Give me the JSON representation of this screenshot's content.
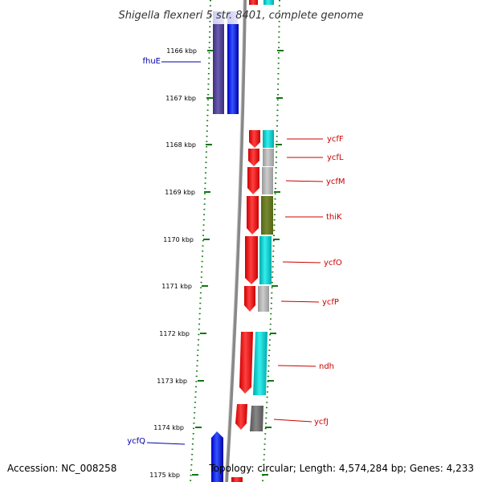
{
  "title": "Shigella flexneri 5 str. 8401, complete genome",
  "footer": {
    "accession": "Accession: NC_008258",
    "summary": "Topology: circular; Length: 4,574,284 bp; Genes: 4,233"
  },
  "scale_labels": [
    "1166 kbp",
    "1167 kbp",
    "1168 kbp",
    "1169 kbp",
    "1170 kbp",
    "1171 kbp",
    "1172 kbp",
    "1173 kbp",
    "1174 kbp",
    "1175 kbp"
  ],
  "genes_left": [
    {
      "name": "fhuE",
      "color": "#0000aa"
    },
    {
      "name": "ycfQ",
      "color": "#0000aa"
    }
  ],
  "genes_right": [
    {
      "name": "ycfF",
      "color": "#cc0000"
    },
    {
      "name": "ycfL",
      "color": "#cc0000"
    },
    {
      "name": "ycfM",
      "color": "#cc0000"
    },
    {
      "name": "thiK",
      "color": "#cc0000"
    },
    {
      "name": "ycfO",
      "color": "#cc0000"
    },
    {
      "name": "ycfP",
      "color": "#cc0000"
    },
    {
      "name": "ndh",
      "color": "#cc0000"
    },
    {
      "name": "ycfJ",
      "color": "#cc0000"
    }
  ],
  "colors": {
    "forward_strand": "#0000ff",
    "reverse_strand": "#ff0000",
    "cog_purple": "#4b3d8f",
    "cog_cyan": "#00cccc",
    "cog_gray": "#aaaaaa",
    "cog_olive": "#667722",
    "cog_dark_gray": "#666666",
    "ticks": "#117711",
    "backbone": "#888888"
  }
}
